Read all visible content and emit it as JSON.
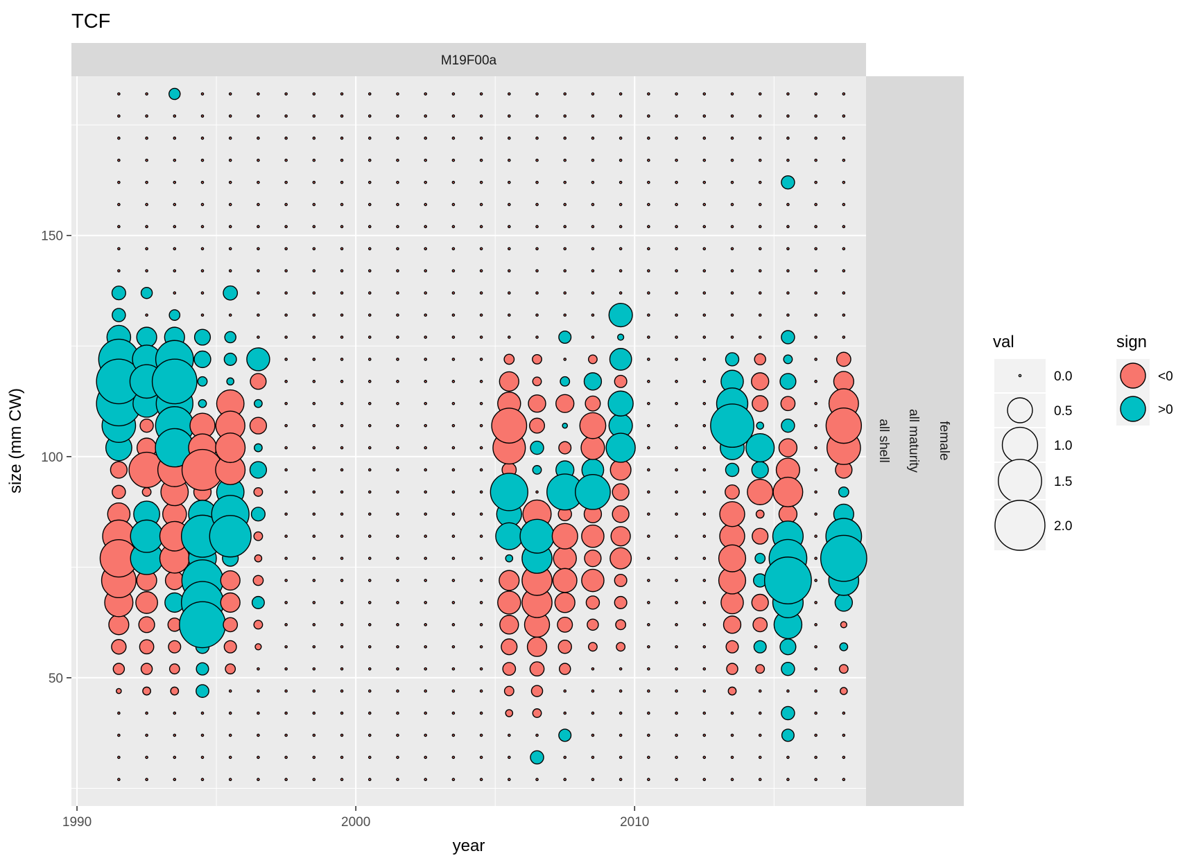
{
  "chart_data": {
    "type": "scatter",
    "title": "TCF",
    "facet_top": "M19F00a",
    "facet_right": [
      "all shell",
      "all maturity",
      "female"
    ],
    "xlabel": "year",
    "ylabel": "size (mm CW)",
    "xlim": [
      1989.8,
      2018.3
    ],
    "ylim": [
      21,
      186
    ],
    "x_ticks": [
      {
        "value": 1990,
        "label": "1990"
      },
      {
        "value": 2000,
        "label": "2000"
      },
      {
        "value": 2010,
        "label": "2010"
      }
    ],
    "y_ticks": [
      {
        "value": 50,
        "label": "50"
      },
      {
        "value": 100,
        "label": "100"
      },
      {
        "value": 150,
        "label": "150"
      }
    ],
    "grid": true,
    "size_scale": {
      "max_value": 2.0
    },
    "colors": {
      "neg": "#f8766d",
      "pos": "#00bfc4"
    },
    "size_bins": [
      27,
      32,
      37,
      42,
      47,
      52,
      57,
      62,
      67,
      72,
      77,
      82,
      87,
      92,
      97,
      102,
      107,
      112,
      117,
      122,
      127,
      132,
      137,
      142,
      147,
      152,
      157,
      162,
      167,
      172,
      177,
      182
    ],
    "years": [
      1991,
      1992,
      1993,
      1994,
      1995,
      1996,
      1997,
      1998,
      1999,
      2000,
      2001,
      2002,
      2003,
      2004,
      2005,
      2006,
      2007,
      2008,
      2009,
      2010,
      2011,
      2012,
      2013,
      2014,
      2015,
      2016,
      2017
    ],
    "default_val": 0,
    "series": [
      {
        "year": 1991,
        "points": [
          [
            77,
            -1.12
          ],
          [
            82,
            -0.84
          ],
          [
            72,
            -0.95
          ],
          [
            67,
            -0.64
          ],
          [
            87,
            -0.4
          ],
          [
            62,
            -0.32
          ],
          [
            92,
            -0.14
          ],
          [
            97,
            -0.22
          ],
          [
            57,
            -0.17
          ],
          [
            52,
            -0.1
          ],
          [
            47,
            -0.02
          ],
          [
            102,
            0.54
          ],
          [
            107,
            0.9
          ],
          [
            112,
            1.6
          ],
          [
            117,
            1.6
          ],
          [
            122,
            1.3
          ],
          [
            127,
            0.45
          ],
          [
            132,
            0.14
          ],
          [
            137,
            0.15
          ]
        ]
      },
      {
        "year": 1992,
        "points": [
          [
            97,
            -1.0
          ],
          [
            82,
            0.84
          ],
          [
            77,
            0.84
          ],
          [
            87,
            0.54
          ],
          [
            112,
            0.6
          ],
          [
            117,
            0.9
          ],
          [
            122,
            0.65
          ],
          [
            127,
            0.32
          ],
          [
            137,
            0.1
          ],
          [
            102,
            -0.3
          ],
          [
            107,
            -0.14
          ],
          [
            92,
            -0.06
          ],
          [
            72,
            -0.32
          ],
          [
            67,
            -0.38
          ],
          [
            62,
            -0.2
          ],
          [
            57,
            -0.16
          ],
          [
            52,
            -0.1
          ],
          [
            47,
            -0.05
          ]
        ]
      },
      {
        "year": 1993,
        "points": [
          [
            102,
            1.18
          ],
          [
            107,
            1.16
          ],
          [
            112,
            1.08
          ],
          [
            117,
            1.6
          ],
          [
            122,
            1.14
          ],
          [
            127,
            0.32
          ],
          [
            132,
            0.09
          ],
          [
            182,
            0.1
          ],
          [
            97,
            -0.9
          ],
          [
            92,
            -0.6
          ],
          [
            87,
            -0.45
          ],
          [
            82,
            -0.7
          ],
          [
            77,
            -0.7
          ],
          [
            72,
            -0.27
          ],
          [
            62,
            -0.14
          ],
          [
            57,
            -0.12
          ],
          [
            52,
            -0.08
          ],
          [
            47,
            -0.05
          ],
          [
            67,
            0.3
          ]
        ]
      },
      {
        "year": 1994,
        "points": [
          [
            62,
            1.7
          ],
          [
            67,
            1.42
          ],
          [
            72,
            1.36
          ],
          [
            77,
            0.62
          ],
          [
            82,
            1.42
          ],
          [
            87,
            0.62
          ],
          [
            57,
            0.14
          ],
          [
            52,
            0.12
          ],
          [
            47,
            0.13
          ],
          [
            97,
            -1.34
          ],
          [
            102,
            -0.62
          ],
          [
            107,
            -0.5
          ],
          [
            92,
            -0.24
          ],
          [
            127,
            0.2
          ],
          [
            122,
            0.22
          ],
          [
            117,
            0.07
          ],
          [
            112,
            0.05
          ]
        ]
      },
      {
        "year": 1995,
        "points": [
          [
            82,
            1.38
          ],
          [
            87,
            1.12
          ],
          [
            92,
            0.6
          ],
          [
            77,
            0.2
          ],
          [
            97,
            -0.7
          ],
          [
            102,
            -0.7
          ],
          [
            107,
            -0.68
          ],
          [
            112,
            -0.6
          ],
          [
            72,
            -0.3
          ],
          [
            67,
            -0.3
          ],
          [
            62,
            -0.16
          ],
          [
            57,
            -0.12
          ],
          [
            52,
            -0.08
          ],
          [
            127,
            0.1
          ],
          [
            122,
            0.12
          ],
          [
            137,
            0.16
          ],
          [
            117,
            0.04
          ]
        ]
      },
      {
        "year": 1996,
        "points": [
          [
            122,
            0.42
          ],
          [
            97,
            0.22
          ],
          [
            87,
            0.15
          ],
          [
            67,
            0.12
          ],
          [
            117,
            -0.2
          ],
          [
            107,
            -0.22
          ],
          [
            112,
            0.05
          ],
          [
            102,
            0.05
          ],
          [
            92,
            -0.06
          ],
          [
            82,
            -0.06
          ],
          [
            77,
            -0.04
          ],
          [
            72,
            -0.08
          ],
          [
            62,
            -0.06
          ],
          [
            57,
            -0.03
          ]
        ]
      },
      {
        "year": 2005,
        "points": [
          [
            92,
            1.12
          ],
          [
            87,
            0.5
          ],
          [
            82,
            0.58
          ],
          [
            77,
            0.04
          ],
          [
            97,
            -0.16
          ],
          [
            102,
            -0.84
          ],
          [
            107,
            -0.98
          ],
          [
            112,
            -0.42
          ],
          [
            117,
            -0.3
          ],
          [
            122,
            -0.08
          ],
          [
            72,
            -0.32
          ],
          [
            67,
            -0.42
          ],
          [
            62,
            -0.28
          ],
          [
            57,
            -0.2
          ],
          [
            52,
            -0.13
          ],
          [
            47,
            -0.07
          ],
          [
            42,
            -0.04
          ]
        ]
      },
      {
        "year": 2006,
        "points": [
          [
            82,
            0.92
          ],
          [
            77,
            0.72
          ],
          [
            102,
            0.14
          ],
          [
            97,
            0.06
          ],
          [
            32,
            0.14
          ],
          [
            87,
            -0.64
          ],
          [
            72,
            -0.72
          ],
          [
            67,
            -0.72
          ],
          [
            62,
            -0.5
          ],
          [
            57,
            -0.3
          ],
          [
            52,
            -0.16
          ],
          [
            47,
            -0.1
          ],
          [
            42,
            -0.06
          ],
          [
            107,
            -0.18
          ],
          [
            112,
            -0.24
          ],
          [
            117,
            -0.06
          ],
          [
            122,
            -0.07
          ]
        ]
      },
      {
        "year": 2007,
        "points": [
          [
            92,
            1.04
          ],
          [
            97,
            0.26
          ],
          [
            117,
            0.07
          ],
          [
            127,
            0.12
          ],
          [
            37,
            0.12
          ],
          [
            82,
            -0.52
          ],
          [
            77,
            -0.42
          ],
          [
            72,
            -0.46
          ],
          [
            67,
            -0.32
          ],
          [
            62,
            -0.18
          ],
          [
            57,
            -0.14
          ],
          [
            52,
            -0.1
          ],
          [
            87,
            -0.14
          ],
          [
            102,
            -0.12
          ],
          [
            112,
            -0.26
          ],
          [
            107,
            0.02
          ]
        ]
      },
      {
        "year": 2008,
        "points": [
          [
            92,
            0.98
          ],
          [
            97,
            0.38
          ],
          [
            117,
            0.24
          ],
          [
            107,
            -0.54
          ],
          [
            102,
            -0.44
          ],
          [
            82,
            -0.4
          ],
          [
            87,
            -0.24
          ],
          [
            77,
            -0.22
          ],
          [
            72,
            -0.4
          ],
          [
            67,
            -0.14
          ],
          [
            62,
            -0.1
          ],
          [
            57,
            -0.06
          ],
          [
            112,
            -0.18
          ],
          [
            122,
            -0.06
          ]
        ]
      },
      {
        "year": 2009,
        "points": [
          [
            132,
            0.44
          ],
          [
            122,
            0.38
          ],
          [
            112,
            0.5
          ],
          [
            107,
            0.44
          ],
          [
            102,
            0.68
          ],
          [
            97,
            -0.34
          ],
          [
            92,
            -0.22
          ],
          [
            87,
            -0.22
          ],
          [
            82,
            -0.3
          ],
          [
            77,
            -0.36
          ],
          [
            72,
            -0.12
          ],
          [
            67,
            -0.12
          ],
          [
            62,
            -0.08
          ],
          [
            57,
            -0.06
          ],
          [
            117,
            -0.12
          ],
          [
            127,
            0.03
          ]
        ]
      },
      {
        "year": 2013,
        "points": [
          [
            107,
            1.5
          ],
          [
            112,
            0.78
          ],
          [
            117,
            0.4
          ],
          [
            102,
            0.46
          ],
          [
            97,
            0.14
          ],
          [
            122,
            0.14
          ],
          [
            92,
            -0.16
          ],
          [
            87,
            -0.5
          ],
          [
            82,
            -0.5
          ],
          [
            77,
            -0.58
          ],
          [
            72,
            -0.58
          ],
          [
            67,
            -0.4
          ],
          [
            62,
            -0.24
          ],
          [
            57,
            -0.12
          ],
          [
            52,
            -0.1
          ],
          [
            47,
            -0.05
          ]
        ]
      },
      {
        "year": 2014,
        "points": [
          [
            102,
            0.64
          ],
          [
            97,
            0.22
          ],
          [
            107,
            0.04
          ],
          [
            92,
            -0.52
          ],
          [
            87,
            -0.05
          ],
          [
            82,
            -0.2
          ],
          [
            72,
            0.14
          ],
          [
            77,
            0.08
          ],
          [
            67,
            -0.22
          ],
          [
            62,
            -0.16
          ],
          [
            57,
            0.12
          ],
          [
            112,
            -0.2
          ],
          [
            117,
            -0.24
          ],
          [
            122,
            -0.1
          ],
          [
            52,
            -0.06
          ]
        ]
      },
      {
        "year": 2015,
        "points": [
          [
            72,
            1.76
          ],
          [
            77,
            1.14
          ],
          [
            82,
            0.74
          ],
          [
            67,
            0.74
          ],
          [
            62,
            0.62
          ],
          [
            57,
            0.2
          ],
          [
            52,
            0.14
          ],
          [
            42,
            0.14
          ],
          [
            37,
            0.12
          ],
          [
            107,
            0.14
          ],
          [
            117,
            0.2
          ],
          [
            122,
            0.06
          ],
          [
            127,
            0.14
          ],
          [
            162,
            0.14
          ],
          [
            92,
            -0.7
          ],
          [
            97,
            -0.44
          ],
          [
            87,
            -0.26
          ],
          [
            102,
            -0.26
          ],
          [
            112,
            -0.16
          ]
        ]
      },
      {
        "year": 2017,
        "points": [
          [
            77,
            1.7
          ],
          [
            82,
            1.02
          ],
          [
            72,
            0.72
          ],
          [
            87,
            0.32
          ],
          [
            67,
            0.24
          ],
          [
            92,
            0.08
          ],
          [
            57,
            0.05
          ],
          [
            102,
            -0.9
          ],
          [
            107,
            -1.0
          ],
          [
            112,
            -0.7
          ],
          [
            117,
            -0.32
          ],
          [
            122,
            -0.16
          ],
          [
            97,
            -0.22
          ],
          [
            52,
            -0.06
          ],
          [
            47,
            -0.04
          ],
          [
            62,
            -0.03
          ]
        ]
      }
    ],
    "legend": {
      "size": {
        "title": "val",
        "entries": [
          {
            "label": "0.0",
            "value": 0.0
          },
          {
            "label": "0.5",
            "value": 0.5
          },
          {
            "label": "1.0",
            "value": 1.0
          },
          {
            "label": "1.5",
            "value": 1.5
          },
          {
            "label": "2.0",
            "value": 2.0
          }
        ]
      },
      "color": {
        "title": "sign",
        "entries": [
          {
            "label": "<0",
            "key": "neg"
          },
          {
            "label": ">0",
            "key": "pos"
          }
        ]
      },
      "placement": "right"
    }
  }
}
